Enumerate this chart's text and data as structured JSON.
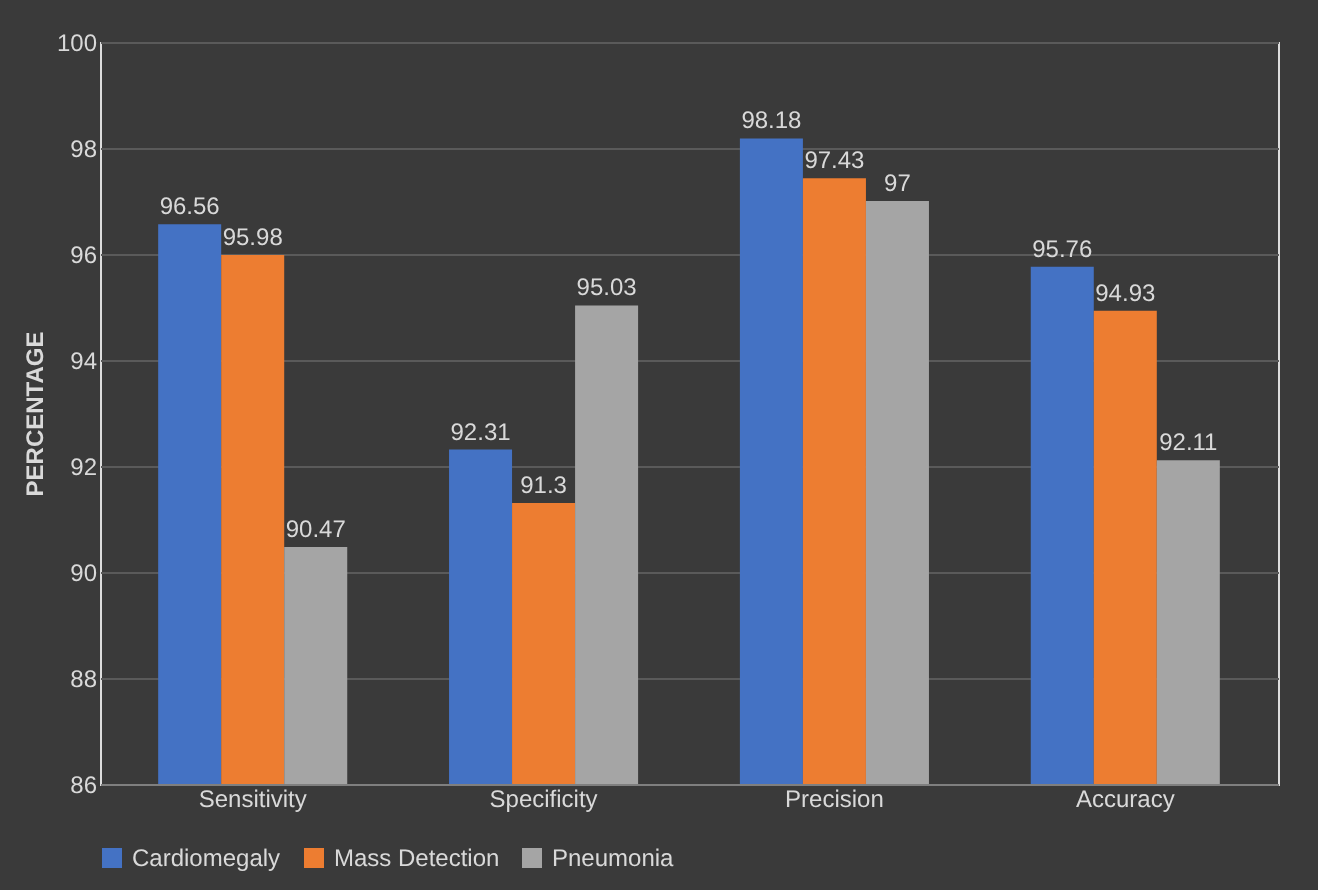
{
  "chart_data": {
    "type": "bar",
    "ylabel": "PERCENTAGE",
    "categories": [
      "Sensitivity",
      "Specificity",
      "Precision",
      "Accuracy"
    ],
    "series": [
      {
        "name": "Cardiomegaly",
        "color": "#4472c4",
        "values": [
          96.56,
          92.31,
          98.18,
          95.76
        ]
      },
      {
        "name": "Mass Detection",
        "color": "#ed7d31",
        "values": [
          95.98,
          91.3,
          97.43,
          94.93
        ]
      },
      {
        "name": "Pneumonia",
        "color": "#a5a5a5",
        "values": [
          90.47,
          95.03,
          97,
          92.11
        ]
      }
    ],
    "ylim": [
      86,
      100
    ],
    "yticks": [
      86,
      88,
      90,
      92,
      94,
      96,
      98,
      100
    ],
    "grid": "y",
    "legend": "bottom",
    "data_labels": true
  }
}
